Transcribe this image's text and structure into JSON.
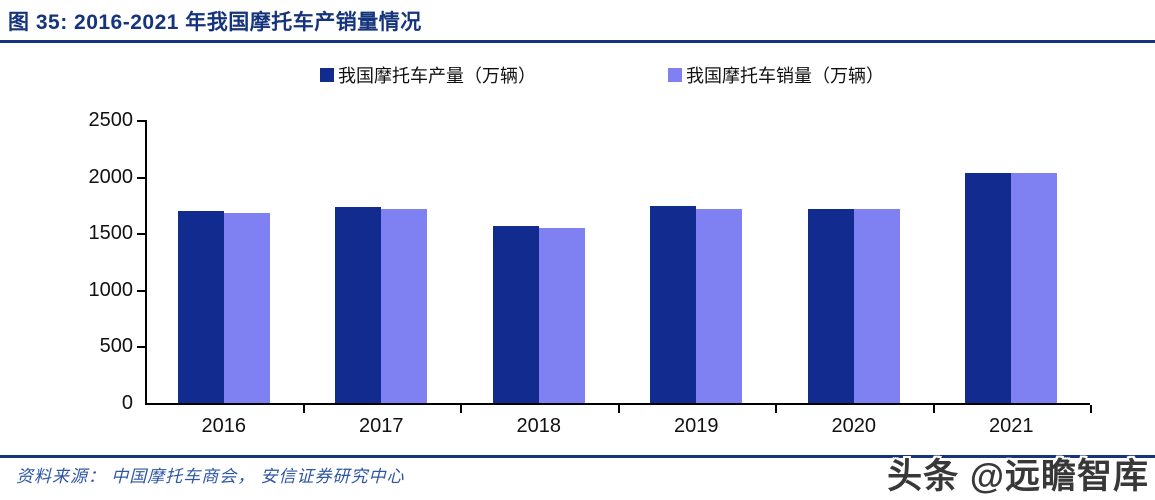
{
  "title": "图 35:  2016-2021 年我国摩托车产销量情况",
  "footer": {
    "source": "资料来源：  中国摩托车商会，  安信证券研究中心"
  },
  "watermark": "头条 @远瞻智库",
  "colors": {
    "accent_navy": "#16347c",
    "production_bar": "#122b8f",
    "sales_bar": "#7f81f2",
    "footer_text": "#2d56a5",
    "axis": "#000000",
    "watermark_text": "#383838"
  },
  "chart_data": {
    "type": "bar",
    "categories": [
      "2016",
      "2017",
      "2018",
      "2019",
      "2020",
      "2021"
    ],
    "series": [
      {
        "name": "我国摩托车产量（万辆）",
        "color": "#122b8f",
        "values": [
          1695,
          1730,
          1565,
          1740,
          1712,
          2030
        ]
      },
      {
        "name": "我国摩托车销量（万辆）",
        "color": "#7f81f2",
        "values": [
          1678,
          1712,
          1548,
          1712,
          1712,
          2030
        ]
      }
    ],
    "title": "",
    "xlabel": "",
    "ylabel": "",
    "ylim": [
      0,
      2500
    ],
    "yticks": [
      0,
      500,
      1000,
      1500,
      2000,
      2500
    ],
    "grid": false,
    "legend_position": "top"
  }
}
